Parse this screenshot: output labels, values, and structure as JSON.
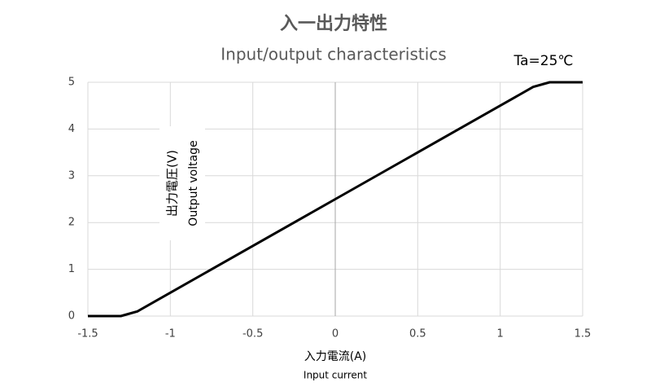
{
  "chart_data": {
    "type": "line",
    "title": "入一出力特性",
    "subtitle": "Input/output characteristics",
    "annotation": "Ta=25℃",
    "y_label": "出力電圧(V)",
    "y_label_en": "Output voltage",
    "x_label": "入力電流(A)",
    "x_label_en": "Input current",
    "x": [
      -1.5,
      -1.3,
      -1.2,
      -1,
      0,
      1,
      1.2,
      1.3,
      1.5
    ],
    "values": [
      0,
      0,
      0.1,
      0.5,
      2.5,
      4.5,
      4.9,
      5,
      5
    ],
    "color": "#000000",
    "xlim": [
      -1.5,
      1.5
    ],
    "xticks": [
      -1.5,
      -1,
      -0.5,
      0,
      0.5,
      1,
      1.5
    ],
    "ylim": [
      0,
      5
    ],
    "yticks": [
      0,
      1,
      2,
      3,
      4,
      5
    ],
    "grid": true
  }
}
